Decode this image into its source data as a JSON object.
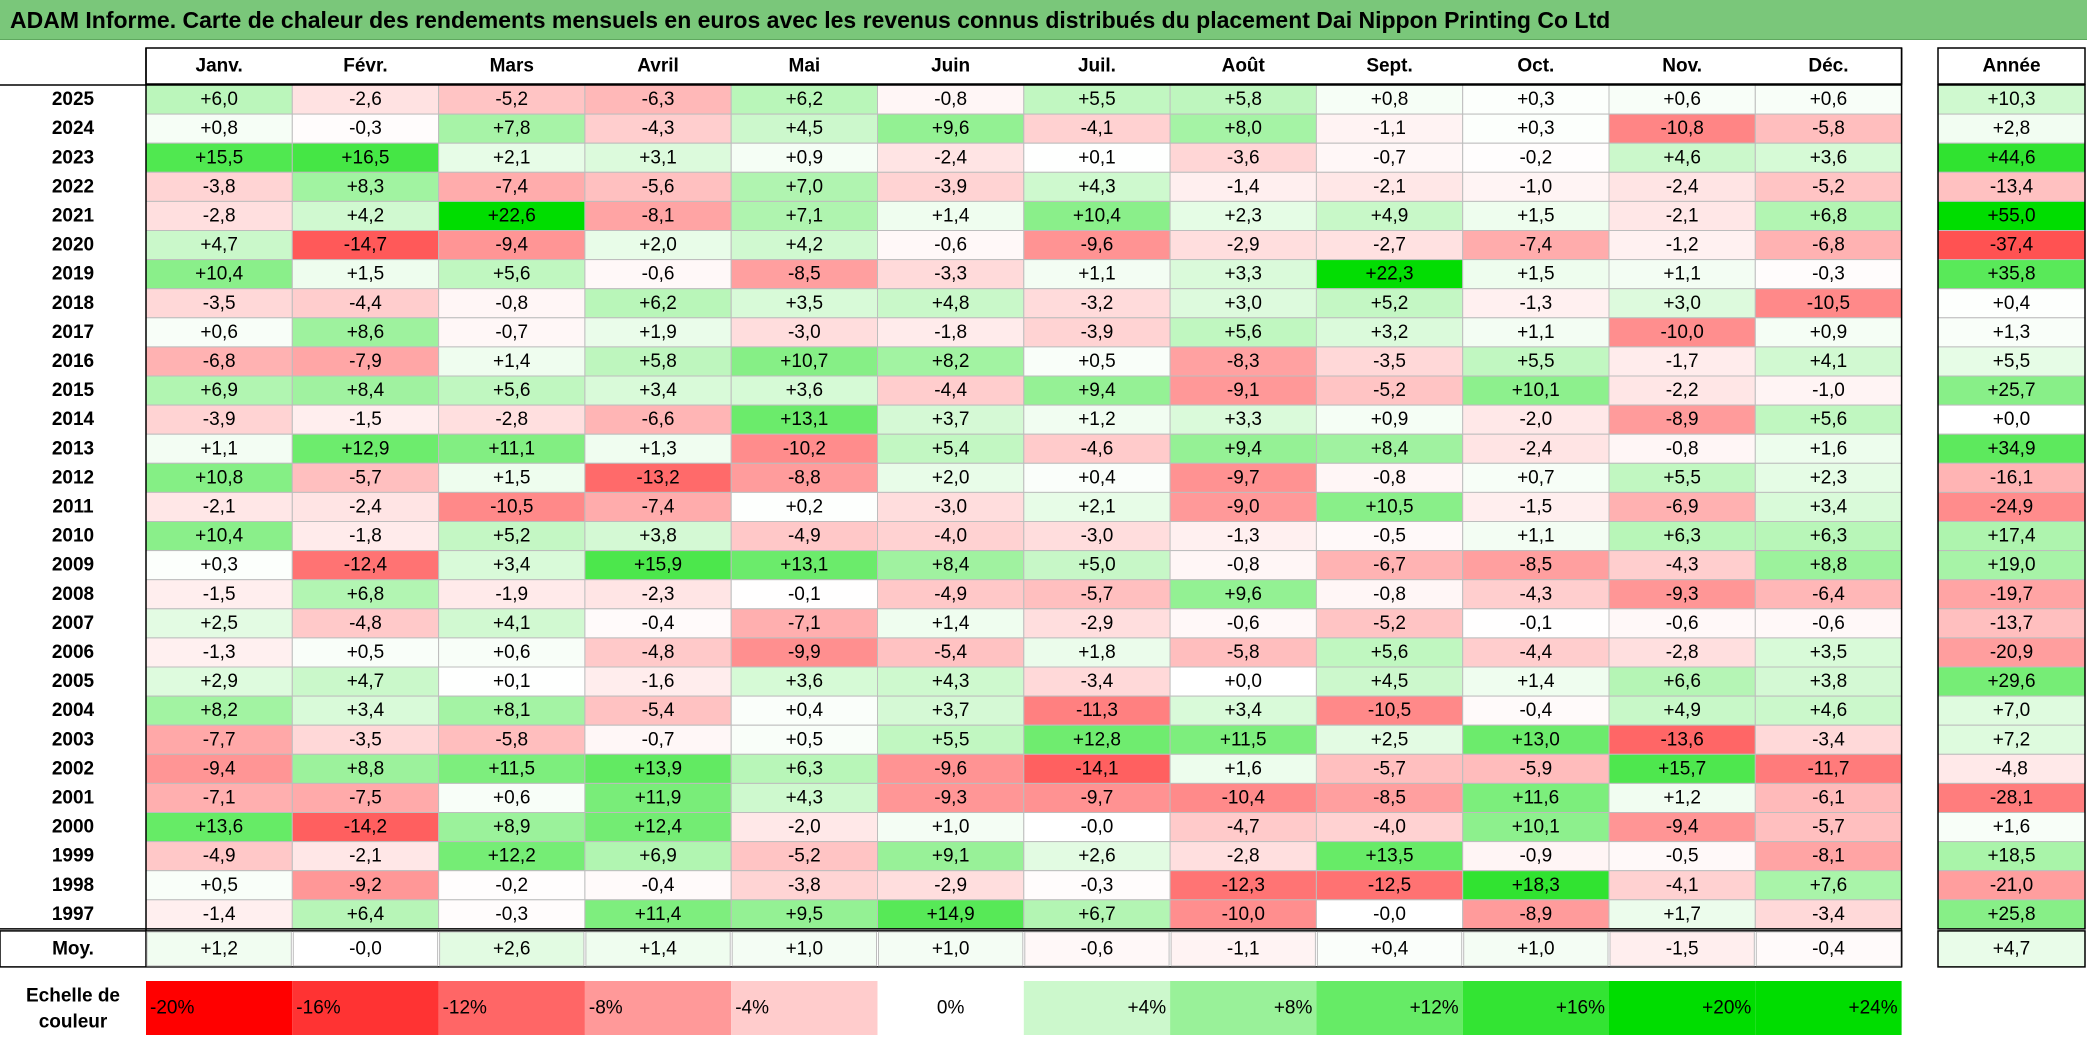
{
  "title": "ADAM Informe. Carte de chaleur des rendements mensuels en euros avec les revenus connus distribués du placement Dai Nippon Printing Co Ltd",
  "chart_data": {
    "type": "heatmap",
    "title": "ADAM Informe. Carte de chaleur des rendements mensuels en euros avec les revenus connus distribués du placement Dai Nippon Printing Co Ltd",
    "months": [
      "Janv.",
      "Févr.",
      "Mars",
      "Avril",
      "Mai",
      "Juin",
      "Juil.",
      "Août",
      "Sept.",
      "Oct.",
      "Nov.",
      "Déc."
    ],
    "year_header": "Année",
    "rows": [
      {
        "year": "2025",
        "values": [
          "+6,0",
          "-2,6",
          "-5,2",
          "-6,3",
          "+6,2",
          "-0,8",
          "+5,5",
          "+5,8",
          "+0,8",
          "+0,3",
          "+0,6",
          "+0,6"
        ],
        "annual": "+10,3"
      },
      {
        "year": "2024",
        "values": [
          "+0,8",
          "-0,3",
          "+7,8",
          "-4,3",
          "+4,5",
          "+9,6",
          "-4,1",
          "+8,0",
          "-1,1",
          "+0,3",
          "-10,8",
          "-5,8"
        ],
        "annual": "+2,8"
      },
      {
        "year": "2023",
        "values": [
          "+15,5",
          "+16,5",
          "+2,1",
          "+3,1",
          "+0,9",
          "-2,4",
          "+0,1",
          "-3,6",
          "-0,7",
          "-0,2",
          "+4,6",
          "+3,6"
        ],
        "annual": "+44,6"
      },
      {
        "year": "2022",
        "values": [
          "-3,8",
          "+8,3",
          "-7,4",
          "-5,6",
          "+7,0",
          "-3,9",
          "+4,3",
          "-1,4",
          "-2,1",
          "-1,0",
          "-2,4",
          "-5,2"
        ],
        "annual": "-13,4"
      },
      {
        "year": "2021",
        "values": [
          "-2,8",
          "+4,2",
          "+22,6",
          "-8,1",
          "+7,1",
          "+1,4",
          "+10,4",
          "+2,3",
          "+4,9",
          "+1,5",
          "-2,1",
          "+6,8"
        ],
        "annual": "+55,0"
      },
      {
        "year": "2020",
        "values": [
          "+4,7",
          "-14,7",
          "-9,4",
          "+2,0",
          "+4,2",
          "-0,6",
          "-9,6",
          "-2,9",
          "-2,7",
          "-7,4",
          "-1,2",
          "-6,8"
        ],
        "annual": "-37,4"
      },
      {
        "year": "2019",
        "values": [
          "+10,4",
          "+1,5",
          "+5,6",
          "-0,6",
          "-8,5",
          "-3,3",
          "+1,1",
          "+3,3",
          "+22,3",
          "+1,5",
          "+1,1",
          "-0,3"
        ],
        "annual": "+35,8"
      },
      {
        "year": "2018",
        "values": [
          "-3,5",
          "-4,4",
          "-0,8",
          "+6,2",
          "+3,5",
          "+4,8",
          "-3,2",
          "+3,0",
          "+5,2",
          "-1,3",
          "+3,0",
          "-10,5"
        ],
        "annual": "+0,4"
      },
      {
        "year": "2017",
        "values": [
          "+0,6",
          "+8,6",
          "-0,7",
          "+1,9",
          "-3,0",
          "-1,8",
          "-3,9",
          "+5,6",
          "+3,2",
          "+1,1",
          "-10,0",
          "+0,9"
        ],
        "annual": "+1,3"
      },
      {
        "year": "2016",
        "values": [
          "-6,8",
          "-7,9",
          "+1,4",
          "+5,8",
          "+10,7",
          "+8,2",
          "+0,5",
          "-8,3",
          "-3,5",
          "+5,5",
          "-1,7",
          "+4,1"
        ],
        "annual": "+5,5"
      },
      {
        "year": "2015",
        "values": [
          "+6,9",
          "+8,4",
          "+5,6",
          "+3,4",
          "+3,6",
          "-4,4",
          "+9,4",
          "-9,1",
          "-5,2",
          "+10,1",
          "-2,2",
          "-1,0"
        ],
        "annual": "+25,7"
      },
      {
        "year": "2014",
        "values": [
          "-3,9",
          "-1,5",
          "-2,8",
          "-6,6",
          "+13,1",
          "+3,7",
          "+1,2",
          "+3,3",
          "+0,9",
          "-2,0",
          "-8,9",
          "+5,6"
        ],
        "annual": "+0,0"
      },
      {
        "year": "2013",
        "values": [
          "+1,1",
          "+12,9",
          "+11,1",
          "+1,3",
          "-10,2",
          "+5,4",
          "-4,6",
          "+9,4",
          "+8,4",
          "-2,4",
          "-0,8",
          "+1,6"
        ],
        "annual": "+34,9"
      },
      {
        "year": "2012",
        "values": [
          "+10,8",
          "-5,7",
          "+1,5",
          "-13,2",
          "-8,8",
          "+2,0",
          "+0,4",
          "-9,7",
          "-0,8",
          "+0,7",
          "+5,5",
          "+2,3"
        ],
        "annual": "-16,1"
      },
      {
        "year": "2011",
        "values": [
          "-2,1",
          "-2,4",
          "-10,5",
          "-7,4",
          "+0,2",
          "-3,0",
          "+2,1",
          "-9,0",
          "+10,5",
          "-1,5",
          "-6,9",
          "+3,4"
        ],
        "annual": "-24,9"
      },
      {
        "year": "2010",
        "values": [
          "+10,4",
          "-1,8",
          "+5,2",
          "+3,8",
          "-4,9",
          "-4,0",
          "-3,0",
          "-1,3",
          "-0,5",
          "+1,1",
          "+6,3",
          "+6,3"
        ],
        "annual": "+17,4"
      },
      {
        "year": "2009",
        "values": [
          "+0,3",
          "-12,4",
          "+3,4",
          "+15,9",
          "+13,1",
          "+8,4",
          "+5,0",
          "-0,8",
          "-6,7",
          "-8,5",
          "-4,3",
          "+8,8"
        ],
        "annual": "+19,0"
      },
      {
        "year": "2008",
        "values": [
          "-1,5",
          "+6,8",
          "-1,9",
          "-2,3",
          "-0,1",
          "-4,9",
          "-5,7",
          "+9,6",
          "-0,8",
          "-4,3",
          "-9,3",
          "-6,4"
        ],
        "annual": "-19,7"
      },
      {
        "year": "2007",
        "values": [
          "+2,5",
          "-4,8",
          "+4,1",
          "-0,4",
          "-7,1",
          "+1,4",
          "-2,9",
          "-0,6",
          "-5,2",
          "-0,1",
          "-0,6",
          "-0,6"
        ],
        "annual": "-13,7"
      },
      {
        "year": "2006",
        "values": [
          "-1,3",
          "+0,5",
          "+0,6",
          "-4,8",
          "-9,9",
          "-5,4",
          "+1,8",
          "-5,8",
          "+5,6",
          "-4,4",
          "-2,8",
          "+3,5"
        ],
        "annual": "-20,9"
      },
      {
        "year": "2005",
        "values": [
          "+2,9",
          "+4,7",
          "+0,1",
          "-1,6",
          "+3,6",
          "+4,3",
          "-3,4",
          "+0,0",
          "+4,5",
          "+1,4",
          "+6,6",
          "+3,8"
        ],
        "annual": "+29,6"
      },
      {
        "year": "2004",
        "values": [
          "+8,2",
          "+3,4",
          "+8,1",
          "-5,4",
          "+0,4",
          "+3,7",
          "-11,3",
          "+3,4",
          "-10,5",
          "-0,4",
          "+4,9",
          "+4,6"
        ],
        "annual": "+7,0"
      },
      {
        "year": "2003",
        "values": [
          "-7,7",
          "-3,5",
          "-5,8",
          "-0,7",
          "+0,5",
          "+5,5",
          "+12,8",
          "+11,5",
          "+2,5",
          "+13,0",
          "-13,6",
          "-3,4"
        ],
        "annual": "+7,2"
      },
      {
        "year": "2002",
        "values": [
          "-9,4",
          "+8,8",
          "+11,5",
          "+13,9",
          "+6,3",
          "-9,6",
          "-14,1",
          "+1,6",
          "-5,7",
          "-5,9",
          "+15,7",
          "-11,7"
        ],
        "annual": "-4,8"
      },
      {
        "year": "2001",
        "values": [
          "-7,1",
          "-7,5",
          "+0,6",
          "+11,9",
          "+4,3",
          "-9,3",
          "-9,7",
          "-10,4",
          "-8,5",
          "+11,6",
          "+1,2",
          "-6,1"
        ],
        "annual": "-28,1"
      },
      {
        "year": "2000",
        "values": [
          "+13,6",
          "-14,2",
          "+8,9",
          "+12,4",
          "-2,0",
          "+1,0",
          "-0,0",
          "-4,7",
          "-4,0",
          "+10,1",
          "-9,4",
          "-5,7"
        ],
        "annual": "+1,6"
      },
      {
        "year": "1999",
        "values": [
          "-4,9",
          "-2,1",
          "+12,2",
          "+6,9",
          "-5,2",
          "+9,1",
          "+2,6",
          "-2,8",
          "+13,5",
          "-0,9",
          "-0,5",
          "-8,1"
        ],
        "annual": "+18,5"
      },
      {
        "year": "1998",
        "values": [
          "+0,5",
          "-9,2",
          "-0,2",
          "-0,4",
          "-3,8",
          "-2,9",
          "-0,3",
          "-12,3",
          "-12,5",
          "+18,3",
          "-4,1",
          "+7,6"
        ],
        "annual": "-21,0"
      },
      {
        "year": "1997",
        "values": [
          "-1,4",
          "+6,4",
          "-0,3",
          "+11,4",
          "+9,5",
          "+14,9",
          "+6,7",
          "-10,0",
          "-0,0",
          "-8,9",
          "+1,7",
          "-3,4"
        ],
        "annual": "+25,8"
      }
    ],
    "average": {
      "label": "Moy.",
      "values": [
        "+1,2",
        "-0,0",
        "+2,6",
        "+1,4",
        "+1,0",
        "+1,0",
        "-0,6",
        "-1,1",
        "+0,4",
        "+1,0",
        "-1,5",
        "-0,4"
      ],
      "annual": "+4,7"
    },
    "scale": {
      "label_line1": "Echelle de",
      "label_line2": "couleur",
      "items": [
        "-20%",
        "-16%",
        "-12%",
        "-8%",
        "-4%",
        "0%",
        "+4%",
        "+8%",
        "+12%",
        "+16%",
        "+20%",
        "+24%"
      ]
    },
    "colors": {
      "negative_max": "#ff0000",
      "neutral": "#ffffff",
      "positive_max": "#00dd00",
      "title_background": "#7ac77a"
    }
  }
}
